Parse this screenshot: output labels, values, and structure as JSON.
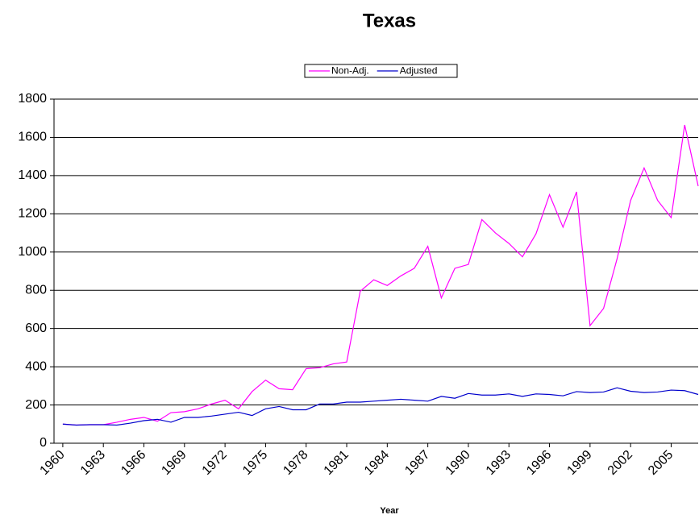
{
  "chart_data": {
    "type": "line",
    "title": "Texas",
    "xlabel": "Year",
    "x": [
      1960,
      1961,
      1962,
      1963,
      1964,
      1965,
      1966,
      1967,
      1968,
      1969,
      1970,
      1971,
      1972,
      1973,
      1974,
      1975,
      1976,
      1977,
      1978,
      1979,
      1980,
      1981,
      1982,
      1983,
      1984,
      1985,
      1986,
      1987,
      1988,
      1989,
      1990,
      1991,
      1992,
      1993,
      1994,
      1995,
      1996,
      1997,
      1998,
      1999,
      2000,
      2001,
      2002,
      2003,
      2004,
      2005,
      2006,
      2007
    ],
    "series": [
      {
        "name": "Non-Adj.",
        "color": "#ff00ff",
        "values": [
          100,
          95,
          97,
          97,
          110,
          125,
          135,
          115,
          160,
          165,
          180,
          205,
          225,
          180,
          270,
          330,
          285,
          280,
          390,
          395,
          415,
          425,
          795,
          855,
          825,
          875,
          915,
          1030,
          760,
          915,
          935,
          1170,
          1100,
          1045,
          975,
          1095,
          1300,
          1130,
          1315,
          615,
          705,
          965,
          1270,
          1440,
          1270,
          1180,
          1665,
          1345
        ]
      },
      {
        "name": "Adjusted",
        "color": "#0000cc",
        "values": [
          100,
          95,
          97,
          97,
          95,
          105,
          118,
          125,
          110,
          135,
          135,
          142,
          152,
          162,
          145,
          180,
          192,
          175,
          175,
          205,
          205,
          215,
          215,
          220,
          225,
          230,
          225,
          220,
          245,
          235,
          260,
          252,
          252,
          258,
          245,
          258,
          255,
          248,
          270,
          265,
          268,
          290,
          272,
          265,
          268,
          278,
          275,
          255
        ]
      }
    ],
    "xlim": [
      1959.35,
      2007
    ],
    "xticks": [
      1960,
      1963,
      1966,
      1969,
      1972,
      1975,
      1978,
      1981,
      1984,
      1987,
      1990,
      1993,
      1996,
      1999,
      2002,
      2005
    ],
    "ylim": [
      0,
      1800
    ],
    "yticks": [
      0,
      200,
      400,
      600,
      800,
      1000,
      1200,
      1400,
      1600,
      1800
    ],
    "grid": true,
    "legend": "top"
  }
}
